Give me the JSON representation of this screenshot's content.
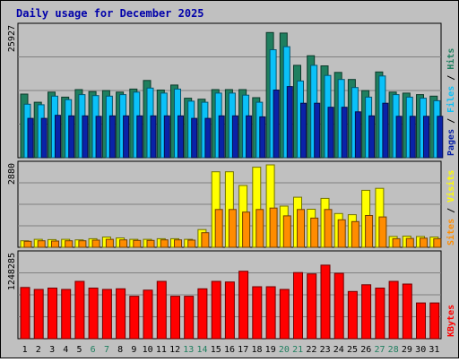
{
  "chart_data": {
    "type": "bar",
    "title": "Daily usage for December 2025",
    "days": [
      "1",
      "2",
      "3",
      "4",
      "5",
      "6",
      "7",
      "8",
      "9",
      "10",
      "11",
      "12",
      "13",
      "14",
      "15",
      "16",
      "17",
      "18",
      "19",
      "20",
      "21",
      "22",
      "23",
      "24",
      "25",
      "26",
      "27",
      "28",
      "29",
      "30",
      "31"
    ],
    "weekend_days": [
      "6",
      "7",
      "13",
      "14",
      "20",
      "21",
      "27",
      "28"
    ],
    "panels": [
      {
        "id": "hits-files-pages",
        "ymax": 25927,
        "ymax_label": "25927",
        "side_labels": [
          "Pages",
          "Files",
          "Hits"
        ],
        "series": [
          {
            "name": "Hits",
            "color": "#1f7f5f",
            "values": [
              12600,
              11000,
              13000,
              12000,
              13500,
              13100,
              13300,
              13000,
              13600,
              15300,
              13400,
              14400,
              11800,
              11600,
              13500,
              13500,
              13500,
              11900,
              24800,
              24700,
              18300,
              20200,
              18200,
              16900,
              15500,
              13300,
              17000,
              13000,
              12800,
              12500,
              12200
            ]
          },
          {
            "name": "Files",
            "color": "#0ac1f9",
            "values": [
              10600,
              10500,
              12200,
              11500,
              12500,
              12300,
              12200,
              12500,
              13000,
              13800,
              12800,
              13600,
              11200,
              11000,
              12800,
              12800,
              12400,
              11000,
              21400,
              22000,
              15200,
              18300,
              16300,
              15500,
              13900,
              12000,
              16200,
              12500,
              12000,
              11800,
              11300
            ]
          },
          {
            "name": "Pages",
            "color": "#0a22a8",
            "values": [
              7800,
              7800,
              8400,
              8300,
              8300,
              8200,
              8300,
              8300,
              8300,
              8300,
              8300,
              8300,
              7800,
              7800,
              8300,
              8300,
              8300,
              8100,
              13400,
              14100,
              10800,
              10800,
              10000,
              10000,
              9100,
              8300,
              10800,
              8200,
              8200,
              8200,
              8200
            ]
          }
        ]
      },
      {
        "id": "visits-sites",
        "ymax": 2880,
        "ymax_label": "2880",
        "side_labels": [
          "Sites",
          "Visits"
        ],
        "series": [
          {
            "name": "Visits",
            "color": "#ffff00",
            "values": [
              230,
              280,
              270,
              280,
              260,
              300,
              360,
              330,
              280,
              280,
              300,
              300,
              280,
              620,
              2640,
              2640,
              2160,
              2800,
              2880,
              1440,
              1750,
              1330,
              1710,
              1180,
              1140,
              1990,
              2060,
              380,
              390,
              380,
              360
            ]
          },
          {
            "name": "Sites",
            "color": "#ff8c00",
            "values": [
              210,
              230,
              220,
              230,
              230,
              250,
              280,
              260,
              240,
              240,
              260,
              260,
              250,
              510,
              1320,
              1320,
              1230,
              1320,
              1370,
              1100,
              1320,
              1020,
              1320,
              960,
              900,
              1110,
              1060,
              300,
              310,
              320,
              300
            ]
          }
        ]
      },
      {
        "id": "kbytes",
        "ymax": 1248285,
        "ymax_label": "1248285",
        "side_labels": [
          "KBytes"
        ],
        "series": [
          {
            "name": "KBytes",
            "color": "#ff0000",
            "values": [
              760000,
              730000,
              750000,
              730000,
              850000,
              750000,
              730000,
              740000,
              630000,
              720000,
              850000,
              630000,
              630000,
              740000,
              850000,
              840000,
              1000000,
              770000,
              770000,
              730000,
              980000,
              960000,
              1090000,
              970000,
              700000,
              800000,
              750000,
              850000,
              810000,
              530000,
              530000
            ]
          }
        ]
      }
    ]
  }
}
